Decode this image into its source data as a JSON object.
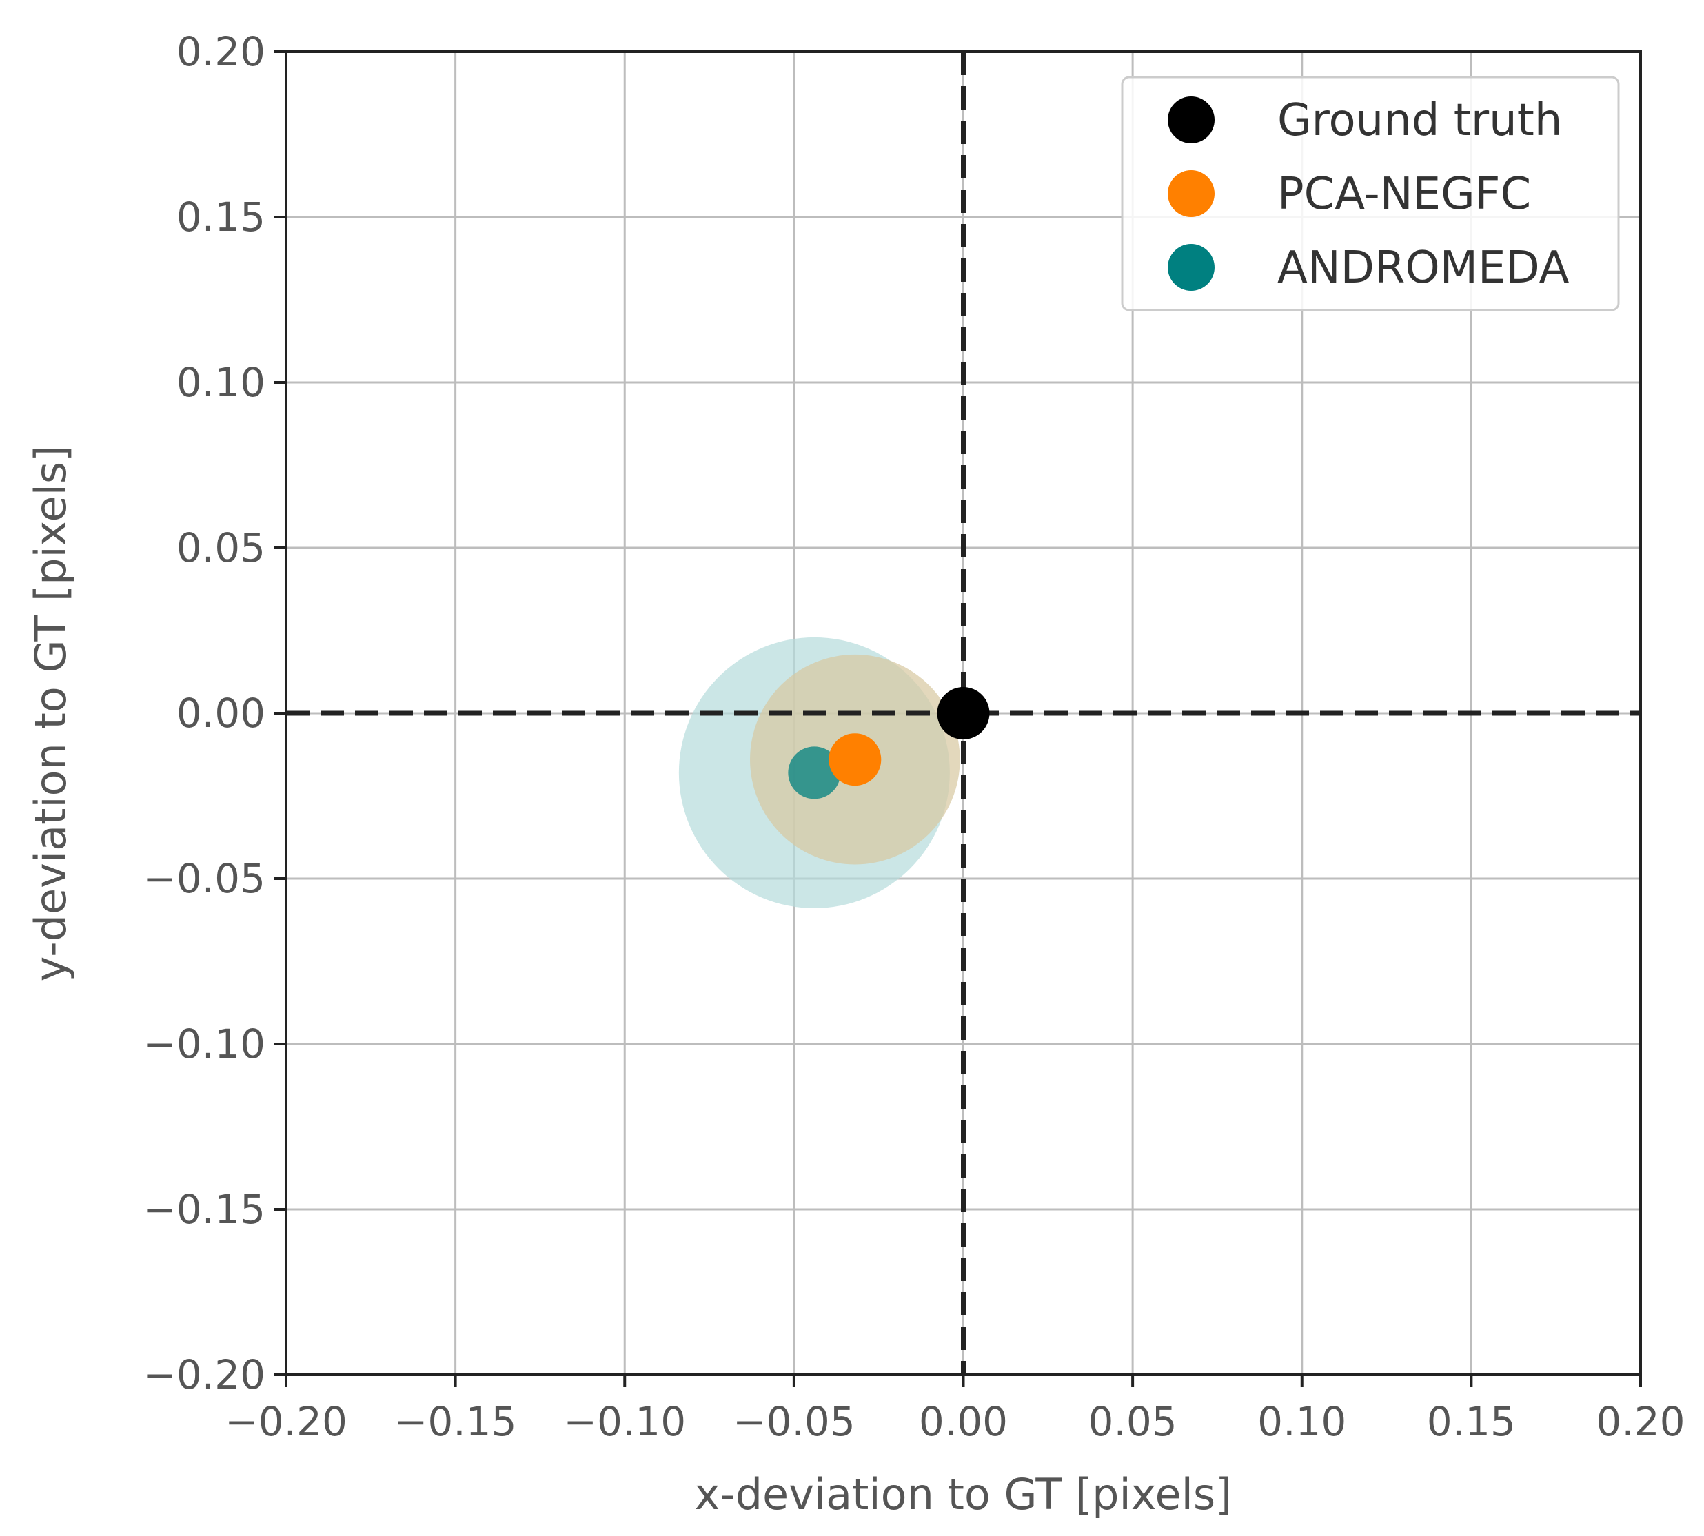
{
  "chart_data": {
    "type": "scatter",
    "xlabel": "x-deviation to GT [pixels]",
    "ylabel": "y-deviation to GT [pixels]",
    "xlim": [
      -0.2,
      0.2
    ],
    "ylim": [
      -0.2,
      0.2
    ],
    "xticks": [
      -0.2,
      -0.15,
      -0.1,
      -0.05,
      0.0,
      0.05,
      0.1,
      0.15,
      0.2
    ],
    "yticks": [
      -0.2,
      -0.15,
      -0.1,
      -0.05,
      0.0,
      0.05,
      0.1,
      0.15,
      0.2
    ],
    "xtick_labels": [
      "−0.20",
      "−0.15",
      "−0.10",
      "−0.05",
      "0.00",
      "0.05",
      "0.10",
      "0.15",
      "0.20"
    ],
    "ytick_labels": [
      "−0.20",
      "−0.15",
      "−0.10",
      "−0.05",
      "0.00",
      "0.05",
      "0.10",
      "0.15",
      "0.20"
    ],
    "grid": true,
    "reference_lines": {
      "x": 0.0,
      "y": 0.0,
      "style": "dashed"
    },
    "legend": {
      "placement": "top-right"
    },
    "series": [
      {
        "name": "Ground truth",
        "color": "#000000",
        "x": 0.0,
        "y": 0.0,
        "uncertainty_radius": 0
      },
      {
        "name": "PCA-NEGFC",
        "color": "#ff8000",
        "x": -0.032,
        "y": -0.014,
        "uncertainty_radius": 0.031,
        "uncertainty_fill": "#d7c8a0"
      },
      {
        "name": "ANDROMEDA",
        "color": "#008080",
        "x": -0.044,
        "y": -0.018,
        "uncertainty_radius": 0.04,
        "uncertainty_fill": "#b5dcdc"
      }
    ]
  }
}
